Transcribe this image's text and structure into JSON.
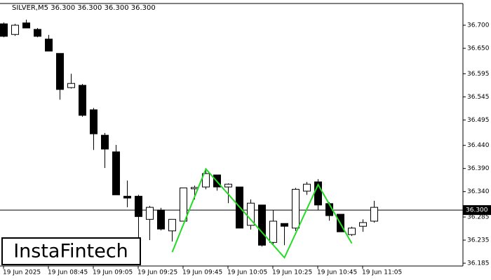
{
  "chart_data": {
    "type": "candlestick",
    "title": "SILVER,M5  36.300 36.300 36.300 36.300",
    "categories": [
      "19 Jun 2025",
      null,
      null,
      null,
      "19 Jun 08:45",
      null,
      null,
      null,
      "19 Jun 09:05",
      null,
      null,
      null,
      "19 Jun 09:25",
      null,
      null,
      null,
      "19 Jun 09:45",
      null,
      null,
      null,
      "19 Jun 10:05",
      null,
      null,
      null,
      "19 Jun 10:25",
      null,
      null,
      null,
      "19 Jun 10:45",
      null,
      null,
      null,
      "19 Jun 11:05",
      null
    ],
    "open": [
      36.703,
      36.68,
      36.705,
      36.691,
      36.67,
      36.639,
      36.565,
      36.57,
      36.517,
      36.462,
      36.426,
      36.33,
      36.33,
      36.28,
      36.3,
      36.255,
      36.276,
      36.346,
      36.35,
      36.376,
      36.35,
      36.35,
      36.267,
      36.311,
      36.23,
      36.271,
      36.261,
      36.341,
      36.361,
      36.314,
      36.291,
      36.247,
      36.265,
      36.276
    ],
    "high": [
      36.706,
      36.703,
      36.712,
      36.694,
      36.679,
      36.639,
      36.595,
      36.573,
      36.521,
      36.467,
      36.441,
      36.364,
      36.333,
      36.309,
      36.305,
      36.28,
      36.348,
      36.353,
      36.391,
      36.376,
      36.358,
      36.35,
      36.323,
      36.311,
      36.3,
      36.271,
      36.348,
      36.361,
      36.367,
      36.317,
      36.291,
      36.264,
      36.28,
      36.32
    ],
    "low": [
      36.674,
      36.677,
      36.694,
      36.674,
      36.644,
      36.539,
      36.563,
      36.502,
      36.43,
      36.391,
      36.333,
      36.306,
      36.217,
      36.235,
      36.256,
      36.232,
      36.276,
      36.323,
      36.345,
      36.342,
      36.315,
      36.261,
      36.258,
      36.221,
      36.224,
      36.224,
      36.255,
      36.333,
      36.3,
      36.277,
      36.253,
      36.244,
      36.253,
      36.273
    ],
    "close": [
      36.676,
      36.7,
      36.694,
      36.676,
      36.644,
      36.561,
      36.574,
      36.505,
      36.465,
      36.432,
      36.333,
      36.326,
      36.286,
      36.306,
      36.259,
      36.28,
      36.348,
      36.349,
      36.379,
      36.35,
      36.356,
      36.261,
      36.315,
      36.224,
      36.276,
      36.265,
      36.345,
      36.356,
      36.311,
      36.288,
      36.253,
      36.261,
      36.273,
      36.306
    ],
    "up_color": "#ffffff",
    "down_color": "#000000",
    "pattern": {
      "color": "#22dd22",
      "x": [
        15,
        18,
        25,
        28,
        31
      ],
      "values": [
        36.209,
        36.389,
        36.197,
        36.355,
        36.228
      ]
    },
    "last_price": {
      "value": 36.3,
      "label": "36.300"
    },
    "ylim": [
      36.179,
      36.747
    ],
    "yticks": [
      {
        "value": 36.7,
        "label": "36.700"
      },
      {
        "value": 36.65,
        "label": "36.650"
      },
      {
        "value": 36.595,
        "label": "36.595"
      },
      {
        "value": 36.545,
        "label": "36.545"
      },
      {
        "value": 36.495,
        "label": "36.495"
      },
      {
        "value": 36.44,
        "label": "36.440"
      },
      {
        "value": 36.39,
        "label": "36.390"
      },
      {
        "value": 36.34,
        "label": "36.340"
      },
      {
        "value": 36.285,
        "label": "36.285"
      },
      {
        "value": 36.235,
        "label": "36.235"
      },
      {
        "value": 36.185,
        "label": "36.185"
      }
    ],
    "grid": false,
    "watermark": "InstaFintech"
  }
}
